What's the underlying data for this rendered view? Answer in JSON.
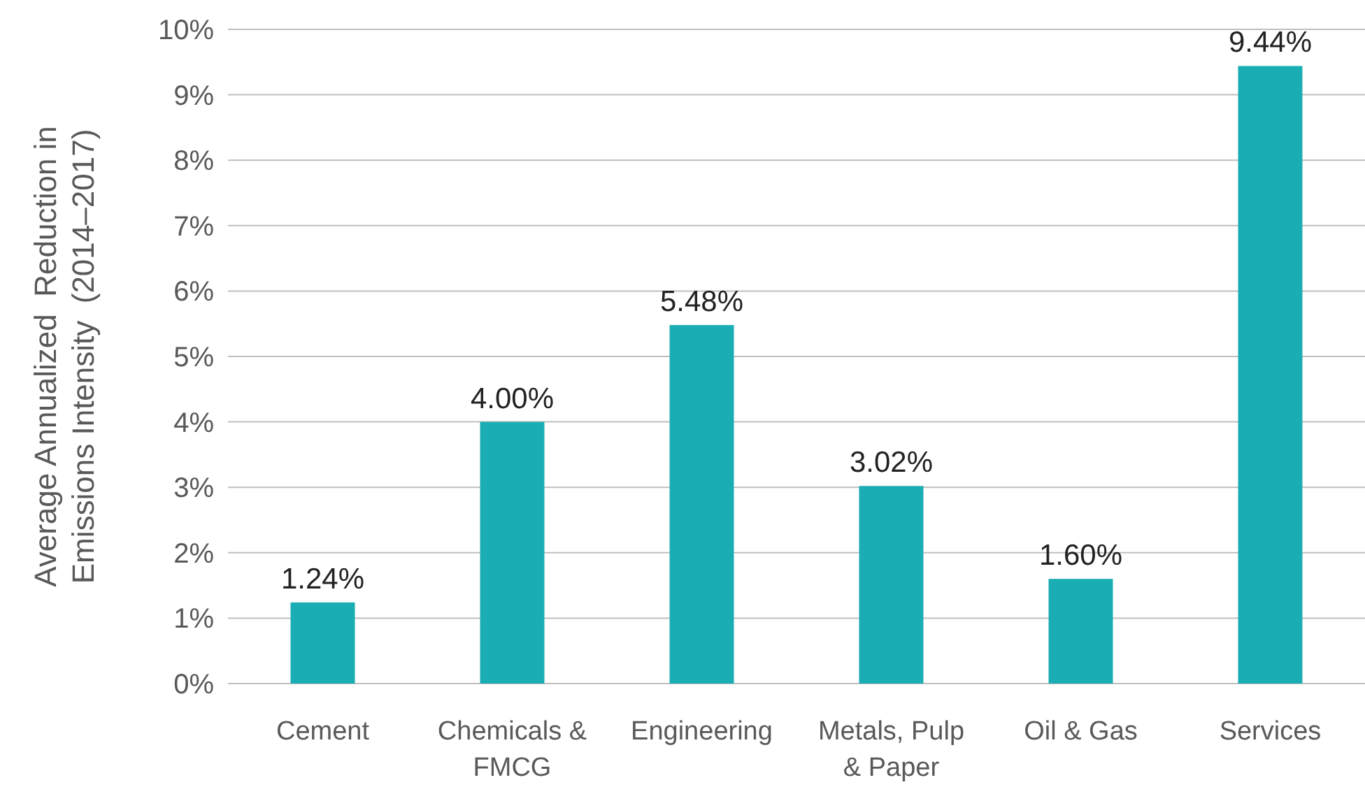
{
  "chart_data": {
    "type": "bar",
    "ylabel": "Average Annualized  Reduction in\nEmissions Intensity  (2014–2017)",
    "categories": [
      "Cement",
      "Chemicals & FMCG",
      "Engineering",
      "Metals, Pulp & Paper",
      "Oil & Gas",
      "Services"
    ],
    "values": [
      1.24,
      4.0,
      5.48,
      3.02,
      1.6,
      9.44
    ],
    "value_labels": [
      "1.24%",
      "4.00%",
      "5.48%",
      "3.02%",
      "1.60%",
      "9.44%"
    ],
    "color": "#1aadb3",
    "ylim": [
      0,
      10
    ],
    "yticks": [
      {
        "value": 0,
        "label": "0%"
      },
      {
        "value": 1,
        "label": "1%"
      },
      {
        "value": 2,
        "label": "2%"
      },
      {
        "value": 3,
        "label": "3%"
      },
      {
        "value": 4,
        "label": "4%"
      },
      {
        "value": 5,
        "label": "5%"
      },
      {
        "value": 6,
        "label": "6%"
      },
      {
        "value": 7,
        "label": "7%"
      },
      {
        "value": 8,
        "label": "8%"
      },
      {
        "value": 9,
        "label": "9%"
      },
      {
        "value": 10,
        "label": "10%"
      }
    ],
    "grid": "y"
  }
}
